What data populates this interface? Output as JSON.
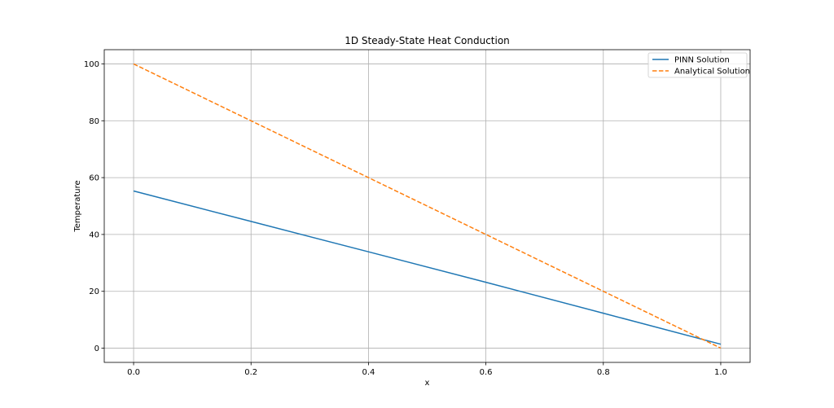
{
  "chart_data": {
    "type": "line",
    "title": "1D Steady-State Heat Conduction",
    "xlabel": "x",
    "ylabel": "Temperature",
    "xlim": [
      -0.05,
      1.05
    ],
    "ylim": [
      -5,
      105
    ],
    "xticks": [
      0.0,
      0.2,
      0.4,
      0.6,
      0.8,
      1.0
    ],
    "xtick_labels": [
      "0.0",
      "0.2",
      "0.4",
      "0.6",
      "0.8",
      "1.0"
    ],
    "yticks": [
      0,
      20,
      40,
      60,
      80,
      100
    ],
    "ytick_labels": [
      "0",
      "20",
      "40",
      "60",
      "80",
      "100"
    ],
    "grid": true,
    "legend_position": "top-right",
    "series": [
      {
        "name": "PINN Solution",
        "color": "#1f77b4",
        "style": "solid",
        "x": [
          0.0,
          0.2,
          0.4,
          0.6,
          0.8,
          1.0
        ],
        "y": [
          55.3,
          44.6,
          33.9,
          23.2,
          12.3,
          1.4
        ]
      },
      {
        "name": "Analytical Solution",
        "color": "#ff7f0e",
        "style": "dashed",
        "x": [
          0.0,
          0.2,
          0.4,
          0.6,
          0.8,
          1.0
        ],
        "y": [
          100,
          80,
          60,
          40,
          20,
          0
        ]
      }
    ]
  }
}
